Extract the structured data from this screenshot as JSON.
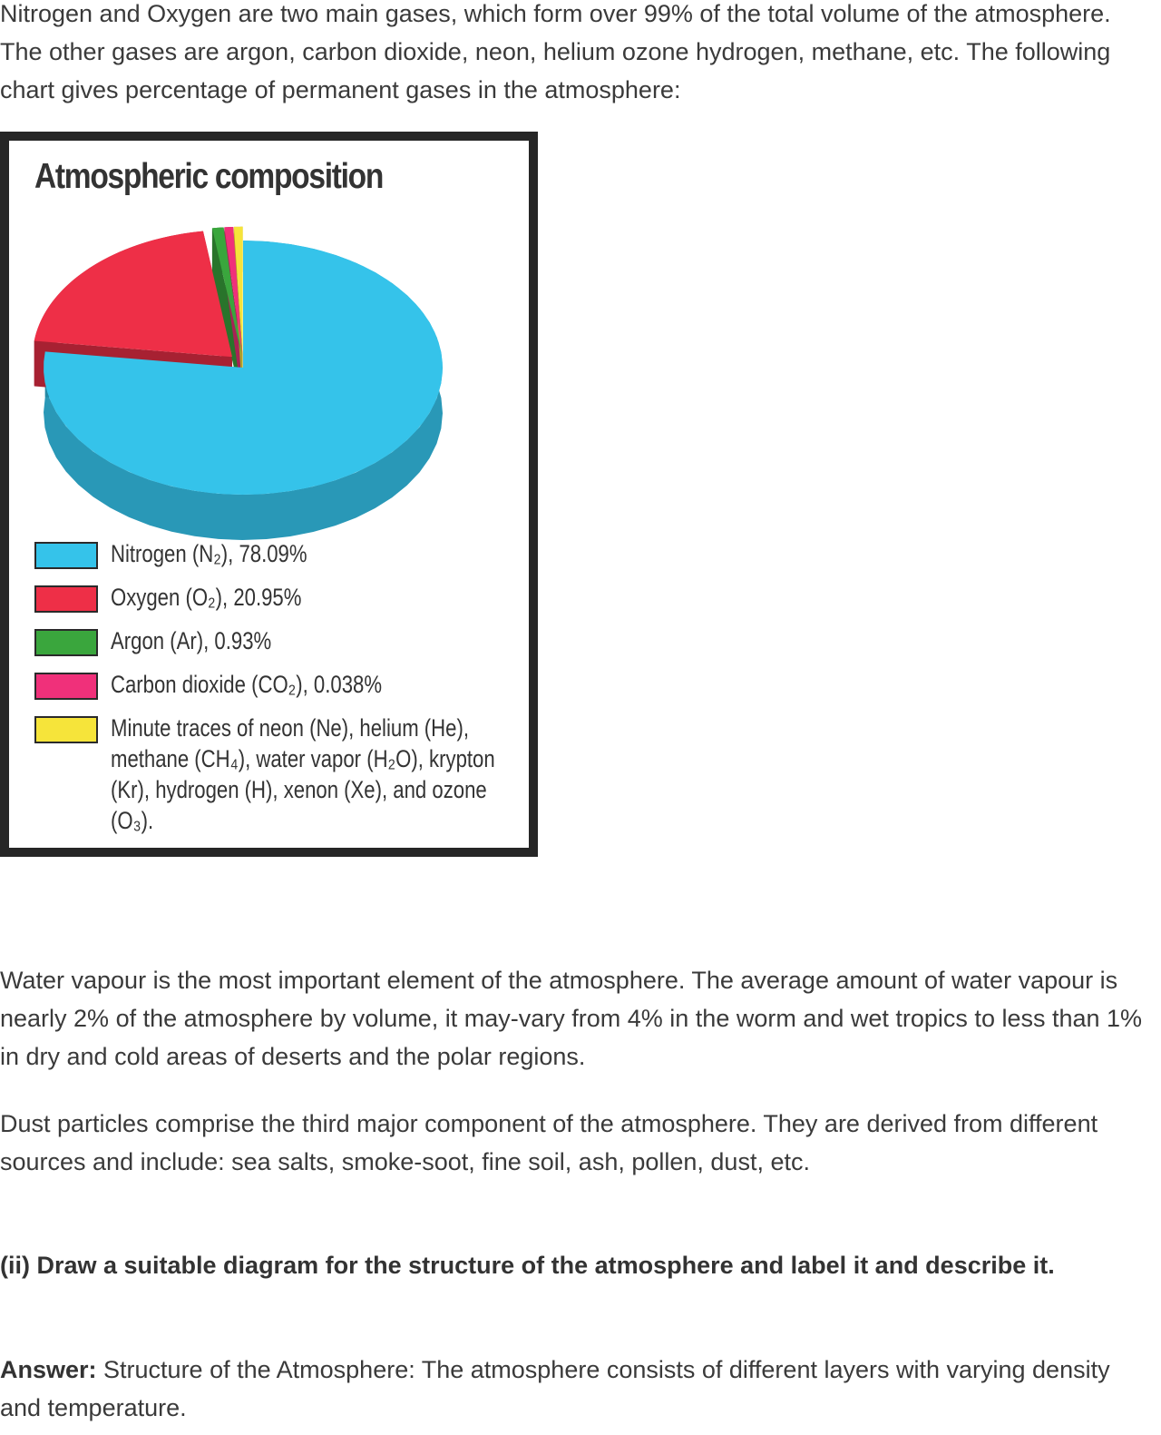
{
  "text": {
    "intro": "Nitrogen and Oxygen are two main gases, which form over 99% of the total volume of the atmosphere. The other gases are argon, carbon dioxide, neon, helium ozone hydrogen, methane, etc. The following chart gives percentage of permanent gases in the atmosphere:",
    "water_vapour": "Water vapour is the most important element of the atmosphere. The average amount of water vapour is nearly 2% of the atmosphere by volume, it may-vary from 4% in the worm and wet tropics to less than 1% in dry and cold areas of deserts and the polar regions.",
    "dust": "Dust particles comprise the third major component of the atmosphere. They are derived from different sources and include: sea salts, smoke-soot, fine soil, ash, pollen, dust, etc.",
    "question": "(ii) Draw a suitable diagram for the structure of the atmosphere and label it and describe it.",
    "answer_label": "Answer:",
    "answer_text": " Structure of the Atmosphere: The atmosphere consists of different layers with varying density and temperature."
  },
  "chart_data": {
    "type": "pie",
    "title": "Atmospheric composition",
    "slices": [
      {
        "label": "Nitrogen (N₂), 78.09%",
        "value": 78.09,
        "color": "#35c3ea"
      },
      {
        "label": "Oxygen (O₂), 20.95%",
        "value": 20.95,
        "color": "#ee2f47"
      },
      {
        "label": "Argon (Ar), 0.93%",
        "value": 0.93,
        "color": "#3aa63d"
      },
      {
        "label": "Carbon dioxide (CO₂), 0.038%",
        "value": 0.038,
        "color": "#f0307a"
      },
      {
        "label": "Minute traces of neon (Ne), helium (He), methane (CH₄), water vapor (H₂O), krypton (Kr), hydrogen (H), xenon (Xe), and ozone (O₃).",
        "value": 0.002,
        "color": "#f6e43a"
      }
    ],
    "exploded_slices": [
      "Oxygen",
      "Argon",
      "Carbon dioxide",
      "Minute traces"
    ],
    "legend_position": "bottom"
  }
}
